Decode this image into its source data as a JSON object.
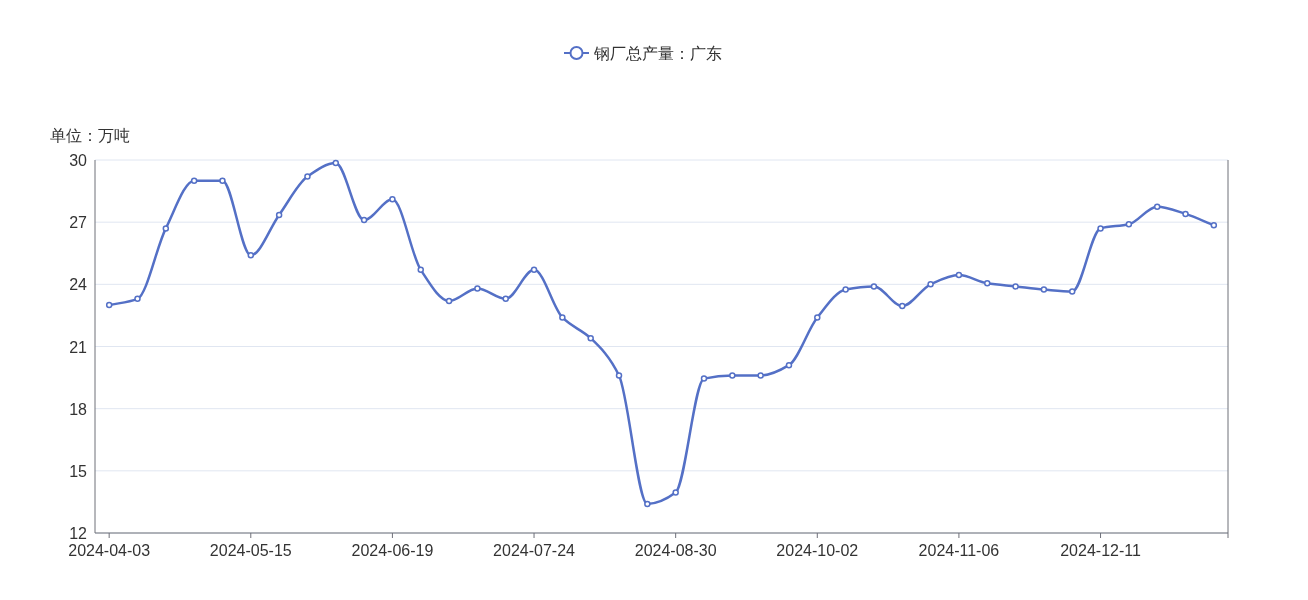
{
  "chart_data": {
    "type": "line",
    "ylabel": "单位：万吨",
    "categories": [
      "2024-04-03",
      null,
      null,
      null,
      null,
      "2024-05-15",
      null,
      null,
      null,
      null,
      "2024-06-19",
      null,
      null,
      null,
      null,
      "2024-07-24",
      null,
      null,
      null,
      null,
      "2024-08-30",
      null,
      null,
      null,
      null,
      "2024-10-02",
      null,
      null,
      null,
      null,
      "2024-11-06",
      null,
      null,
      null,
      null,
      "2024-12-11",
      null,
      null,
      null,
      null
    ],
    "series": [
      {
        "name": "钢厂总产量：广东",
        "color": "#5470c6",
        "values": [
          23.0,
          23.3,
          26.7,
          29.0,
          29.0,
          25.4,
          27.35,
          29.2,
          29.85,
          27.1,
          28.1,
          24.7,
          23.2,
          23.8,
          23.3,
          24.7,
          22.4,
          21.4,
          19.6,
          13.4,
          13.95,
          19.45,
          19.6,
          19.6,
          20.1,
          22.4,
          23.75,
          23.9,
          22.95,
          24.0,
          24.45,
          24.05,
          23.9,
          23.75,
          23.65,
          26.7,
          26.9,
          27.75,
          27.4,
          26.85
        ]
      }
    ],
    "ylim": [
      12,
      30
    ],
    "yticks": [
      12,
      15,
      18,
      21,
      24,
      27,
      30
    ],
    "grid": "y",
    "legend": "top",
    "marker": "circle",
    "line_style": "solid"
  }
}
